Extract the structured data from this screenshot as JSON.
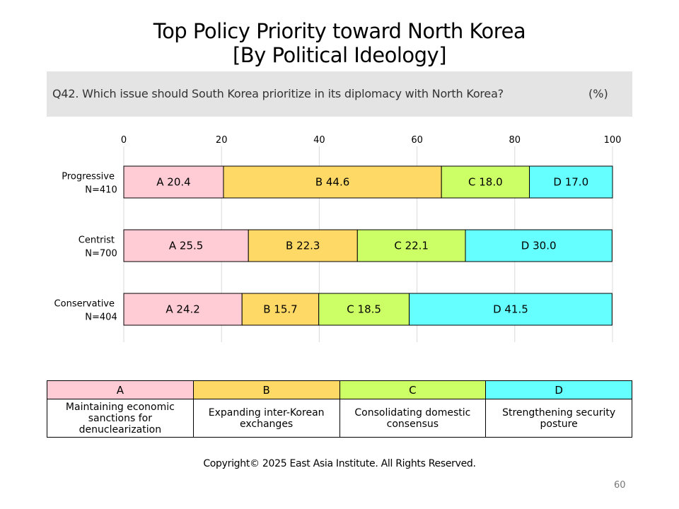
{
  "title_line1": "Top Policy Priority toward North Korea",
  "title_line2": "[By Political Ideology]",
  "question": "Q42. Which issue should South Korea prioritize in its diplomacy with North Korea?",
  "unit": "(%)",
  "chart_data": {
    "type": "bar",
    "orientation": "horizontal",
    "stacked": true,
    "xlim": [
      0,
      100
    ],
    "x_ticks": [
      0,
      20,
      40,
      60,
      80,
      100
    ],
    "grid": true,
    "categories": [
      {
        "line1": "Progressive",
        "line2": "N=410"
      },
      {
        "line1": "Centrist",
        "line2": "N=700"
      },
      {
        "line1": "Conservative",
        "line2": "N=404"
      }
    ],
    "series": [
      {
        "name": "A",
        "color": "#ffccd5",
        "values": [
          20.4,
          25.5,
          24.2
        ]
      },
      {
        "name": "B",
        "color": "#ffd966",
        "values": [
          44.6,
          22.3,
          15.7
        ]
      },
      {
        "name": "C",
        "color": "#ccff66",
        "values": [
          18.0,
          22.1,
          18.5
        ]
      },
      {
        "name": "D",
        "color": "#66ffff",
        "values": [
          17.0,
          30.0,
          41.5
        ]
      }
    ]
  },
  "legend": [
    {
      "letter": "A",
      "description": "Maintaining economic sanctions for denuclearization",
      "color": "#ffccd5"
    },
    {
      "letter": "B",
      "description": "Expanding inter-Korean exchanges",
      "color": "#ffd966"
    },
    {
      "letter": "C",
      "description": "Consolidating domestic consensus",
      "color": "#ccff66"
    },
    {
      "letter": "D",
      "description": "Strengthening security posture",
      "color": "#66ffff"
    }
  ],
  "copyright": "Copyright© 2025 East Asia Institute. All Rights Reserved.",
  "page_number": "60"
}
